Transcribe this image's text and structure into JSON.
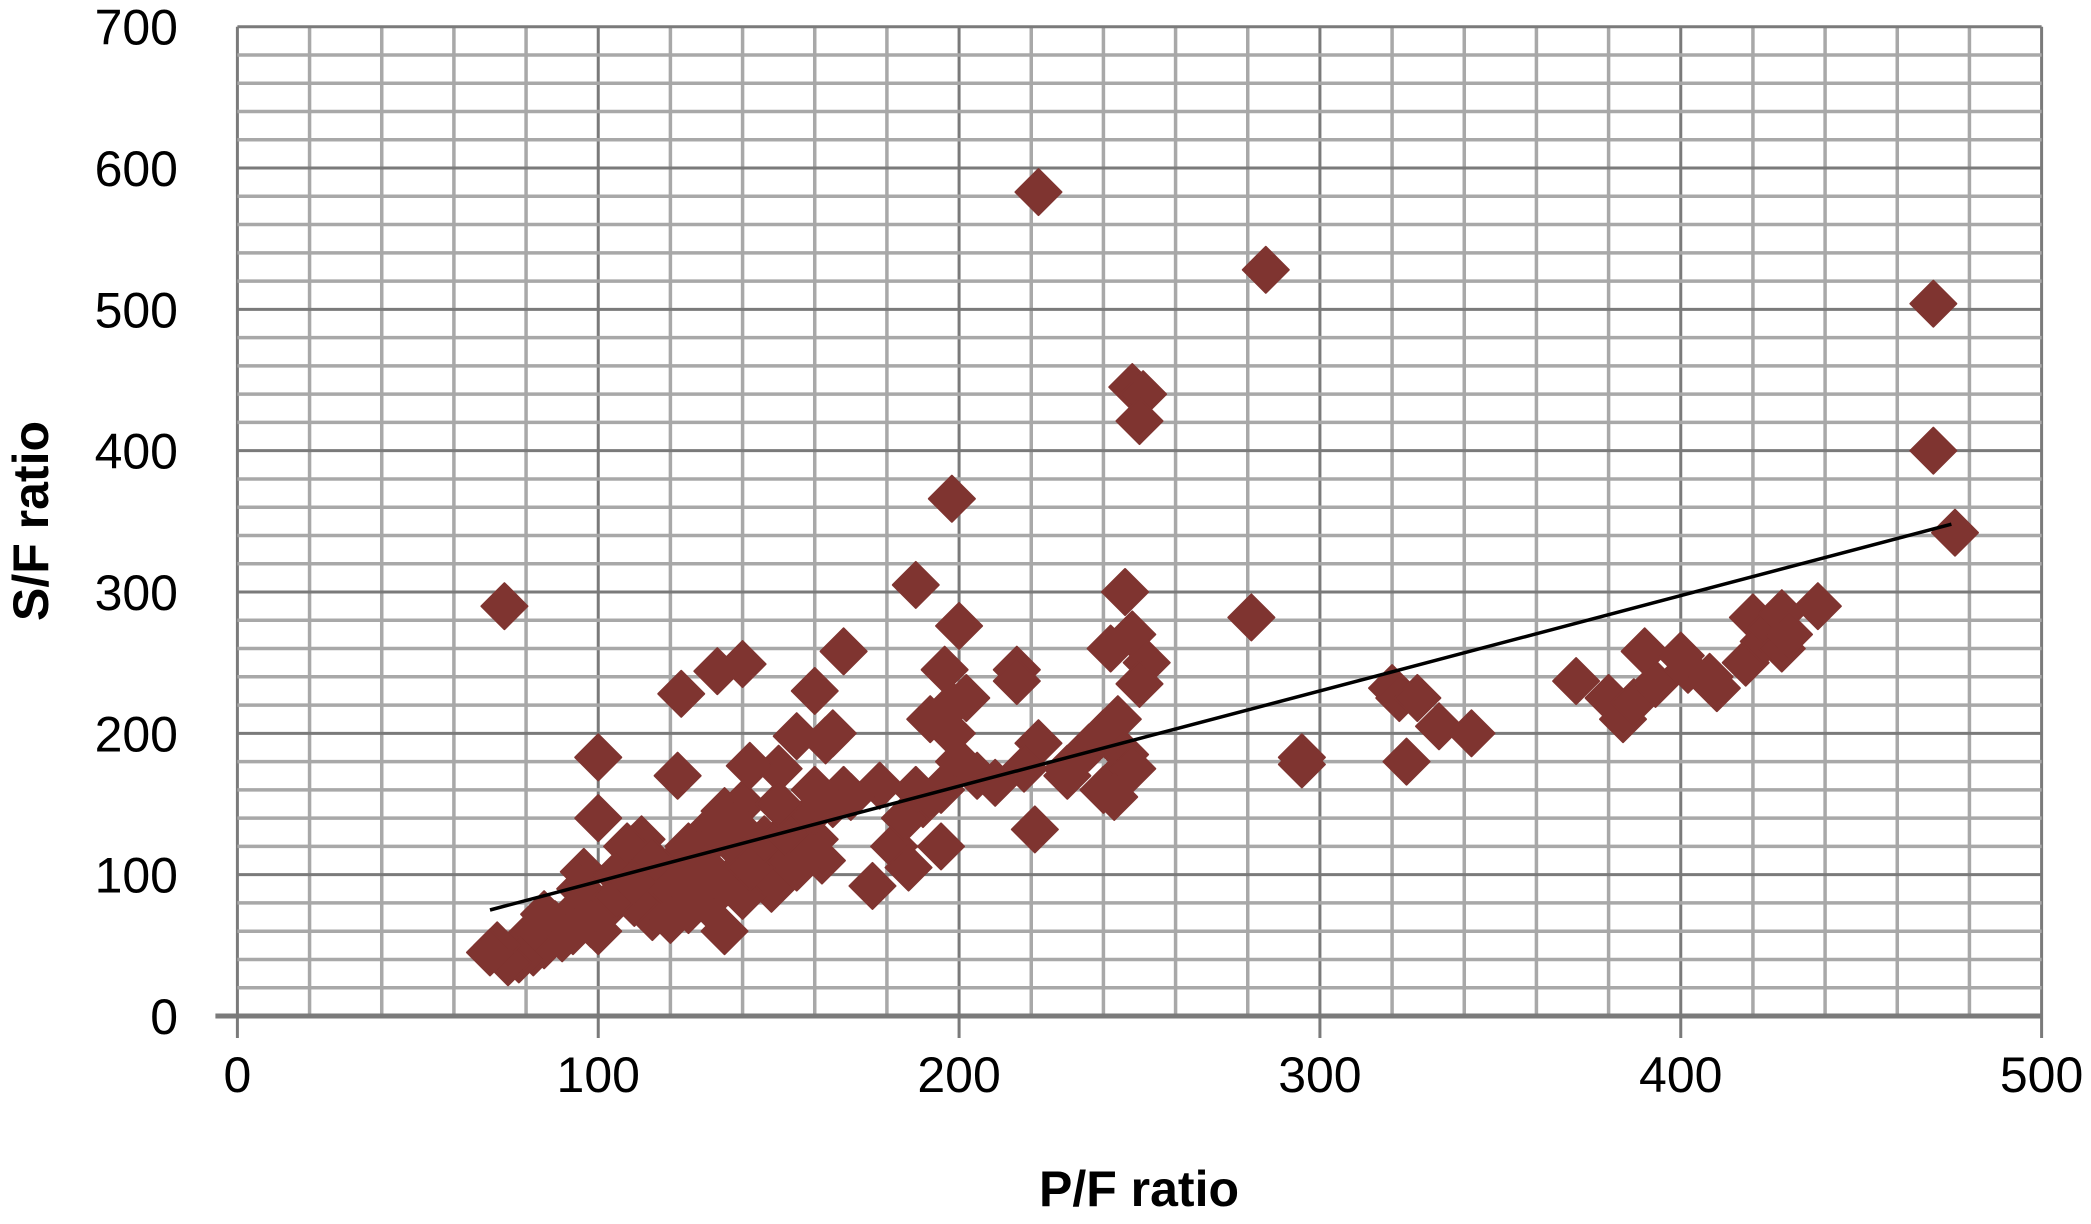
{
  "chart_data": {
    "type": "scatter",
    "title": "",
    "xlabel": "P/F ratio",
    "ylabel": "S/F ratio",
    "xlim": [
      0,
      500
    ],
    "ylim": [
      0,
      700
    ],
    "x_ticks": [
      "0",
      "100",
      "200",
      "300",
      "400",
      "500"
    ],
    "y_ticks": [
      "0",
      "100",
      "200",
      "300",
      "400",
      "500",
      "600",
      "700"
    ],
    "grid": {
      "major": true,
      "minor": true,
      "minor_step_x": 20,
      "minor_step_y": 20
    },
    "legend": "none",
    "marker": "diamond",
    "colors": {
      "points": "#7f3430",
      "trendline": "#000000",
      "major_grid": "#7a7a7a",
      "minor_grid": "#a8a8a8"
    },
    "trendline": {
      "type": "linear",
      "x": [
        70,
        475
      ],
      "y": [
        75,
        348
      ]
    },
    "points": [
      [
        74,
        290
      ],
      [
        222,
        583
      ],
      [
        285,
        528
      ],
      [
        470,
        504
      ],
      [
        470,
        400
      ],
      [
        476,
        342
      ],
      [
        248,
        445
      ],
      [
        251,
        440
      ],
      [
        250,
        421
      ],
      [
        198,
        366
      ],
      [
        188,
        305
      ],
      [
        246,
        300
      ],
      [
        281,
        282
      ],
      [
        200,
        276
      ],
      [
        168,
        258
      ],
      [
        140,
        249
      ],
      [
        133,
        244
      ],
      [
        123,
        228
      ],
      [
        160,
        230
      ],
      [
        196,
        245
      ],
      [
        216,
        245
      ],
      [
        216,
        237
      ],
      [
        248,
        270
      ],
      [
        242,
        260
      ],
      [
        252,
        250
      ],
      [
        250,
        235
      ],
      [
        222,
        193
      ],
      [
        218,
        175
      ],
      [
        221,
        132
      ],
      [
        230,
        170
      ],
      [
        295,
        183
      ],
      [
        295,
        178
      ],
      [
        320,
        232
      ],
      [
        322,
        225
      ],
      [
        327,
        225
      ],
      [
        324,
        180
      ],
      [
        333,
        205
      ],
      [
        342,
        200
      ],
      [
        371,
        237
      ],
      [
        380,
        225
      ],
      [
        384,
        210
      ],
      [
        387,
        222
      ],
      [
        390,
        258
      ],
      [
        393,
        235
      ],
      [
        400,
        255
      ],
      [
        402,
        245
      ],
      [
        408,
        240
      ],
      [
        410,
        232
      ],
      [
        420,
        282
      ],
      [
        418,
        250
      ],
      [
        423,
        265
      ],
      [
        425,
        275
      ],
      [
        428,
        285
      ],
      [
        428,
        260
      ],
      [
        430,
        270
      ],
      [
        438,
        290
      ],
      [
        100,
        183
      ],
      [
        100,
        140
      ],
      [
        96,
        102
      ],
      [
        122,
        170
      ],
      [
        150,
        175
      ],
      [
        155,
        198
      ],
      [
        165,
        200
      ],
      [
        163,
        195
      ],
      [
        178,
        163
      ],
      [
        176,
        92
      ],
      [
        182,
        120
      ],
      [
        186,
        105
      ],
      [
        190,
        150
      ],
      [
        195,
        160
      ],
      [
        195,
        120
      ],
      [
        192,
        210
      ],
      [
        198,
        220
      ],
      [
        200,
        180
      ],
      [
        202,
        225
      ],
      [
        198,
        200
      ],
      [
        240,
        200
      ],
      [
        244,
        210
      ],
      [
        246,
        185
      ],
      [
        240,
        160
      ],
      [
        244,
        170
      ],
      [
        248,
        175
      ],
      [
        243,
        155
      ],
      [
        236,
        190
      ],
      [
        230,
        175
      ],
      [
        142,
        177
      ],
      [
        140,
        150
      ],
      [
        135,
        145
      ],
      [
        130,
        130
      ],
      [
        138,
        120
      ],
      [
        145,
        110
      ],
      [
        150,
        100
      ],
      [
        155,
        115
      ],
      [
        160,
        125
      ],
      [
        158,
        140
      ],
      [
        165,
        150
      ],
      [
        168,
        160
      ],
      [
        162,
        110
      ],
      [
        155,
        105
      ],
      [
        148,
        90
      ],
      [
        140,
        85
      ],
      [
        135,
        60
      ],
      [
        130,
        80
      ],
      [
        125,
        95
      ],
      [
        120,
        105
      ],
      [
        118,
        90
      ],
      [
        115,
        70
      ],
      [
        110,
        80
      ],
      [
        112,
        125
      ],
      [
        108,
        120
      ],
      [
        105,
        100
      ],
      [
        102,
        75
      ],
      [
        100,
        60
      ],
      [
        96,
        80
      ],
      [
        92,
        70
      ],
      [
        90,
        55
      ],
      [
        88,
        65
      ],
      [
        85,
        50
      ],
      [
        82,
        45
      ],
      [
        80,
        55
      ],
      [
        78,
        40
      ],
      [
        75,
        38
      ],
      [
        72,
        50
      ],
      [
        70,
        45
      ],
      [
        85,
        72
      ],
      [
        95,
        90
      ],
      [
        105,
        85
      ],
      [
        115,
        110
      ],
      [
        125,
        120
      ],
      [
        132,
        100
      ],
      [
        128,
        115
      ],
      [
        136,
        95
      ],
      [
        142,
        105
      ],
      [
        146,
        125
      ],
      [
        152,
        130
      ],
      [
        160,
        145
      ],
      [
        170,
        155
      ],
      [
        185,
        140
      ],
      [
        188,
        160
      ],
      [
        205,
        170
      ],
      [
        210,
        165
      ],
      [
        125,
        75
      ],
      [
        120,
        68
      ],
      [
        110,
        95
      ],
      [
        98,
        65
      ],
      [
        93,
        60
      ],
      [
        130,
        105
      ],
      [
        138,
        135
      ],
      [
        150,
        150
      ],
      [
        160,
        160
      ]
    ]
  }
}
